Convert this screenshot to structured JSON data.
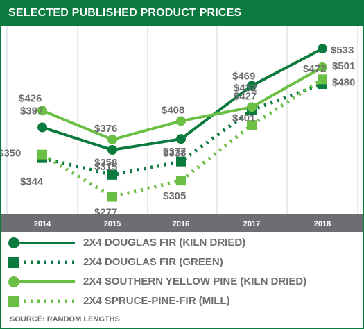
{
  "header": {
    "title": "SELECTED PUBLISHED PRODUCT PRICES"
  },
  "source": "SOURCE: RANDOM LENGTHS",
  "colors": {
    "dark_green": "#0b7a3e",
    "light_green": "#6abf44",
    "gray": "#6d6e71",
    "grid": "#d1d3d4"
  },
  "chart_data": {
    "type": "line",
    "x": [
      "2014",
      "2015",
      "2016",
      "2017",
      "2018"
    ],
    "ylim": [
      250,
      550
    ],
    "grid": "vertical",
    "series": [
      {
        "name": "2X4 DOUGLAS FIR (KILN DRIED)",
        "values": [
          397,
          358,
          377,
          469,
          533
        ],
        "labels": [
          "$397",
          "$358",
          "$377",
          "$469",
          "$533"
        ],
        "style": "solid",
        "marker": "circle",
        "color": "#0b7a3e"
      },
      {
        "name": "2X4 DOUGLAS FIR (GREEN)",
        "values": [
          344,
          315,
          338,
          427,
          472
        ],
        "labels": [
          "$344",
          "$315",
          "$338",
          "$427",
          "$472"
        ],
        "style": "dotted",
        "marker": "square",
        "color": "#0b7a3e"
      },
      {
        "name": "2X4 SOUTHERN YELLOW PINE (KILN DRIED)",
        "values": [
          426,
          376,
          408,
          432,
          501
        ],
        "labels": [
          "$426",
          "$376",
          "$408",
          "$432",
          "$501"
        ],
        "style": "solid",
        "marker": "circle",
        "color": "#6abf44"
      },
      {
        "name": "2X4 SPRUCE-PINE-FIR (MILL)",
        "values": [
          350,
          277,
          305,
          401,
          480
        ],
        "labels": [
          "$350",
          "$277",
          "$305",
          "$401",
          "$480"
        ],
        "style": "dotted",
        "marker": "square",
        "color": "#6abf44"
      }
    ]
  }
}
